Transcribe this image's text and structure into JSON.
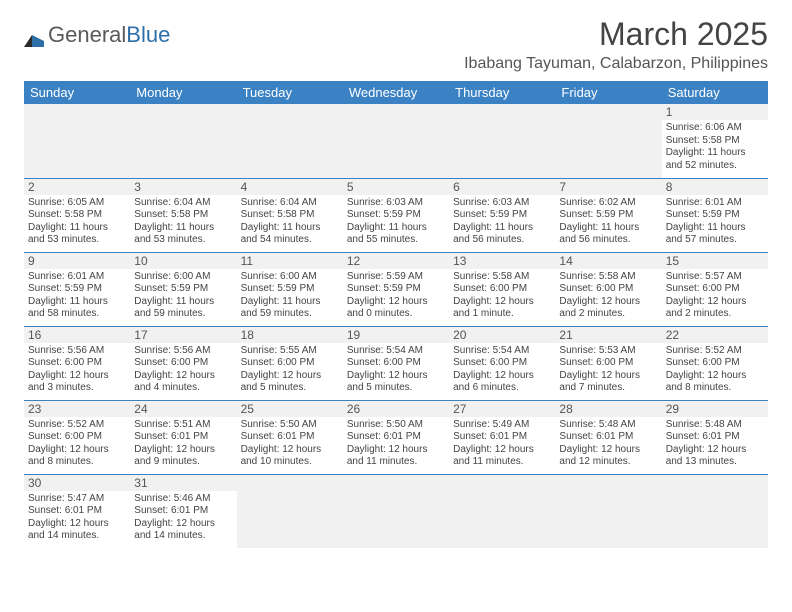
{
  "logo": {
    "text_a": "General",
    "text_b": "Blue"
  },
  "title": "March 2025",
  "location": "Ibabang Tayuman, Calabarzon, Philippines",
  "header_bg": "#3b82c4",
  "day_headers": [
    "Sunday",
    "Monday",
    "Tuesday",
    "Wednesday",
    "Thursday",
    "Friday",
    "Saturday"
  ],
  "weeks": [
    [
      null,
      null,
      null,
      null,
      null,
      null,
      {
        "n": "1",
        "sr": "Sunrise: 6:06 AM",
        "ss": "Sunset: 5:58 PM",
        "dl": "Daylight: 11 hours and 52 minutes."
      }
    ],
    [
      {
        "n": "2",
        "sr": "Sunrise: 6:05 AM",
        "ss": "Sunset: 5:58 PM",
        "dl": "Daylight: 11 hours and 53 minutes."
      },
      {
        "n": "3",
        "sr": "Sunrise: 6:04 AM",
        "ss": "Sunset: 5:58 PM",
        "dl": "Daylight: 11 hours and 53 minutes."
      },
      {
        "n": "4",
        "sr": "Sunrise: 6:04 AM",
        "ss": "Sunset: 5:58 PM",
        "dl": "Daylight: 11 hours and 54 minutes."
      },
      {
        "n": "5",
        "sr": "Sunrise: 6:03 AM",
        "ss": "Sunset: 5:59 PM",
        "dl": "Daylight: 11 hours and 55 minutes."
      },
      {
        "n": "6",
        "sr": "Sunrise: 6:03 AM",
        "ss": "Sunset: 5:59 PM",
        "dl": "Daylight: 11 hours and 56 minutes."
      },
      {
        "n": "7",
        "sr": "Sunrise: 6:02 AM",
        "ss": "Sunset: 5:59 PM",
        "dl": "Daylight: 11 hours and 56 minutes."
      },
      {
        "n": "8",
        "sr": "Sunrise: 6:01 AM",
        "ss": "Sunset: 5:59 PM",
        "dl": "Daylight: 11 hours and 57 minutes."
      }
    ],
    [
      {
        "n": "9",
        "sr": "Sunrise: 6:01 AM",
        "ss": "Sunset: 5:59 PM",
        "dl": "Daylight: 11 hours and 58 minutes."
      },
      {
        "n": "10",
        "sr": "Sunrise: 6:00 AM",
        "ss": "Sunset: 5:59 PM",
        "dl": "Daylight: 11 hours and 59 minutes."
      },
      {
        "n": "11",
        "sr": "Sunrise: 6:00 AM",
        "ss": "Sunset: 5:59 PM",
        "dl": "Daylight: 11 hours and 59 minutes."
      },
      {
        "n": "12",
        "sr": "Sunrise: 5:59 AM",
        "ss": "Sunset: 5:59 PM",
        "dl": "Daylight: 12 hours and 0 minutes."
      },
      {
        "n": "13",
        "sr": "Sunrise: 5:58 AM",
        "ss": "Sunset: 6:00 PM",
        "dl": "Daylight: 12 hours and 1 minute."
      },
      {
        "n": "14",
        "sr": "Sunrise: 5:58 AM",
        "ss": "Sunset: 6:00 PM",
        "dl": "Daylight: 12 hours and 2 minutes."
      },
      {
        "n": "15",
        "sr": "Sunrise: 5:57 AM",
        "ss": "Sunset: 6:00 PM",
        "dl": "Daylight: 12 hours and 2 minutes."
      }
    ],
    [
      {
        "n": "16",
        "sr": "Sunrise: 5:56 AM",
        "ss": "Sunset: 6:00 PM",
        "dl": "Daylight: 12 hours and 3 minutes."
      },
      {
        "n": "17",
        "sr": "Sunrise: 5:56 AM",
        "ss": "Sunset: 6:00 PM",
        "dl": "Daylight: 12 hours and 4 minutes."
      },
      {
        "n": "18",
        "sr": "Sunrise: 5:55 AM",
        "ss": "Sunset: 6:00 PM",
        "dl": "Daylight: 12 hours and 5 minutes."
      },
      {
        "n": "19",
        "sr": "Sunrise: 5:54 AM",
        "ss": "Sunset: 6:00 PM",
        "dl": "Daylight: 12 hours and 5 minutes."
      },
      {
        "n": "20",
        "sr": "Sunrise: 5:54 AM",
        "ss": "Sunset: 6:00 PM",
        "dl": "Daylight: 12 hours and 6 minutes."
      },
      {
        "n": "21",
        "sr": "Sunrise: 5:53 AM",
        "ss": "Sunset: 6:00 PM",
        "dl": "Daylight: 12 hours and 7 minutes."
      },
      {
        "n": "22",
        "sr": "Sunrise: 5:52 AM",
        "ss": "Sunset: 6:00 PM",
        "dl": "Daylight: 12 hours and 8 minutes."
      }
    ],
    [
      {
        "n": "23",
        "sr": "Sunrise: 5:52 AM",
        "ss": "Sunset: 6:00 PM",
        "dl": "Daylight: 12 hours and 8 minutes."
      },
      {
        "n": "24",
        "sr": "Sunrise: 5:51 AM",
        "ss": "Sunset: 6:01 PM",
        "dl": "Daylight: 12 hours and 9 minutes."
      },
      {
        "n": "25",
        "sr": "Sunrise: 5:50 AM",
        "ss": "Sunset: 6:01 PM",
        "dl": "Daylight: 12 hours and 10 minutes."
      },
      {
        "n": "26",
        "sr": "Sunrise: 5:50 AM",
        "ss": "Sunset: 6:01 PM",
        "dl": "Daylight: 12 hours and 11 minutes."
      },
      {
        "n": "27",
        "sr": "Sunrise: 5:49 AM",
        "ss": "Sunset: 6:01 PM",
        "dl": "Daylight: 12 hours and 11 minutes."
      },
      {
        "n": "28",
        "sr": "Sunrise: 5:48 AM",
        "ss": "Sunset: 6:01 PM",
        "dl": "Daylight: 12 hours and 12 minutes."
      },
      {
        "n": "29",
        "sr": "Sunrise: 5:48 AM",
        "ss": "Sunset: 6:01 PM",
        "dl": "Daylight: 12 hours and 13 minutes."
      }
    ],
    [
      {
        "n": "30",
        "sr": "Sunrise: 5:47 AM",
        "ss": "Sunset: 6:01 PM",
        "dl": "Daylight: 12 hours and 14 minutes."
      },
      {
        "n": "31",
        "sr": "Sunrise: 5:46 AM",
        "ss": "Sunset: 6:01 PM",
        "dl": "Daylight: 12 hours and 14 minutes."
      },
      null,
      null,
      null,
      null,
      null
    ]
  ]
}
